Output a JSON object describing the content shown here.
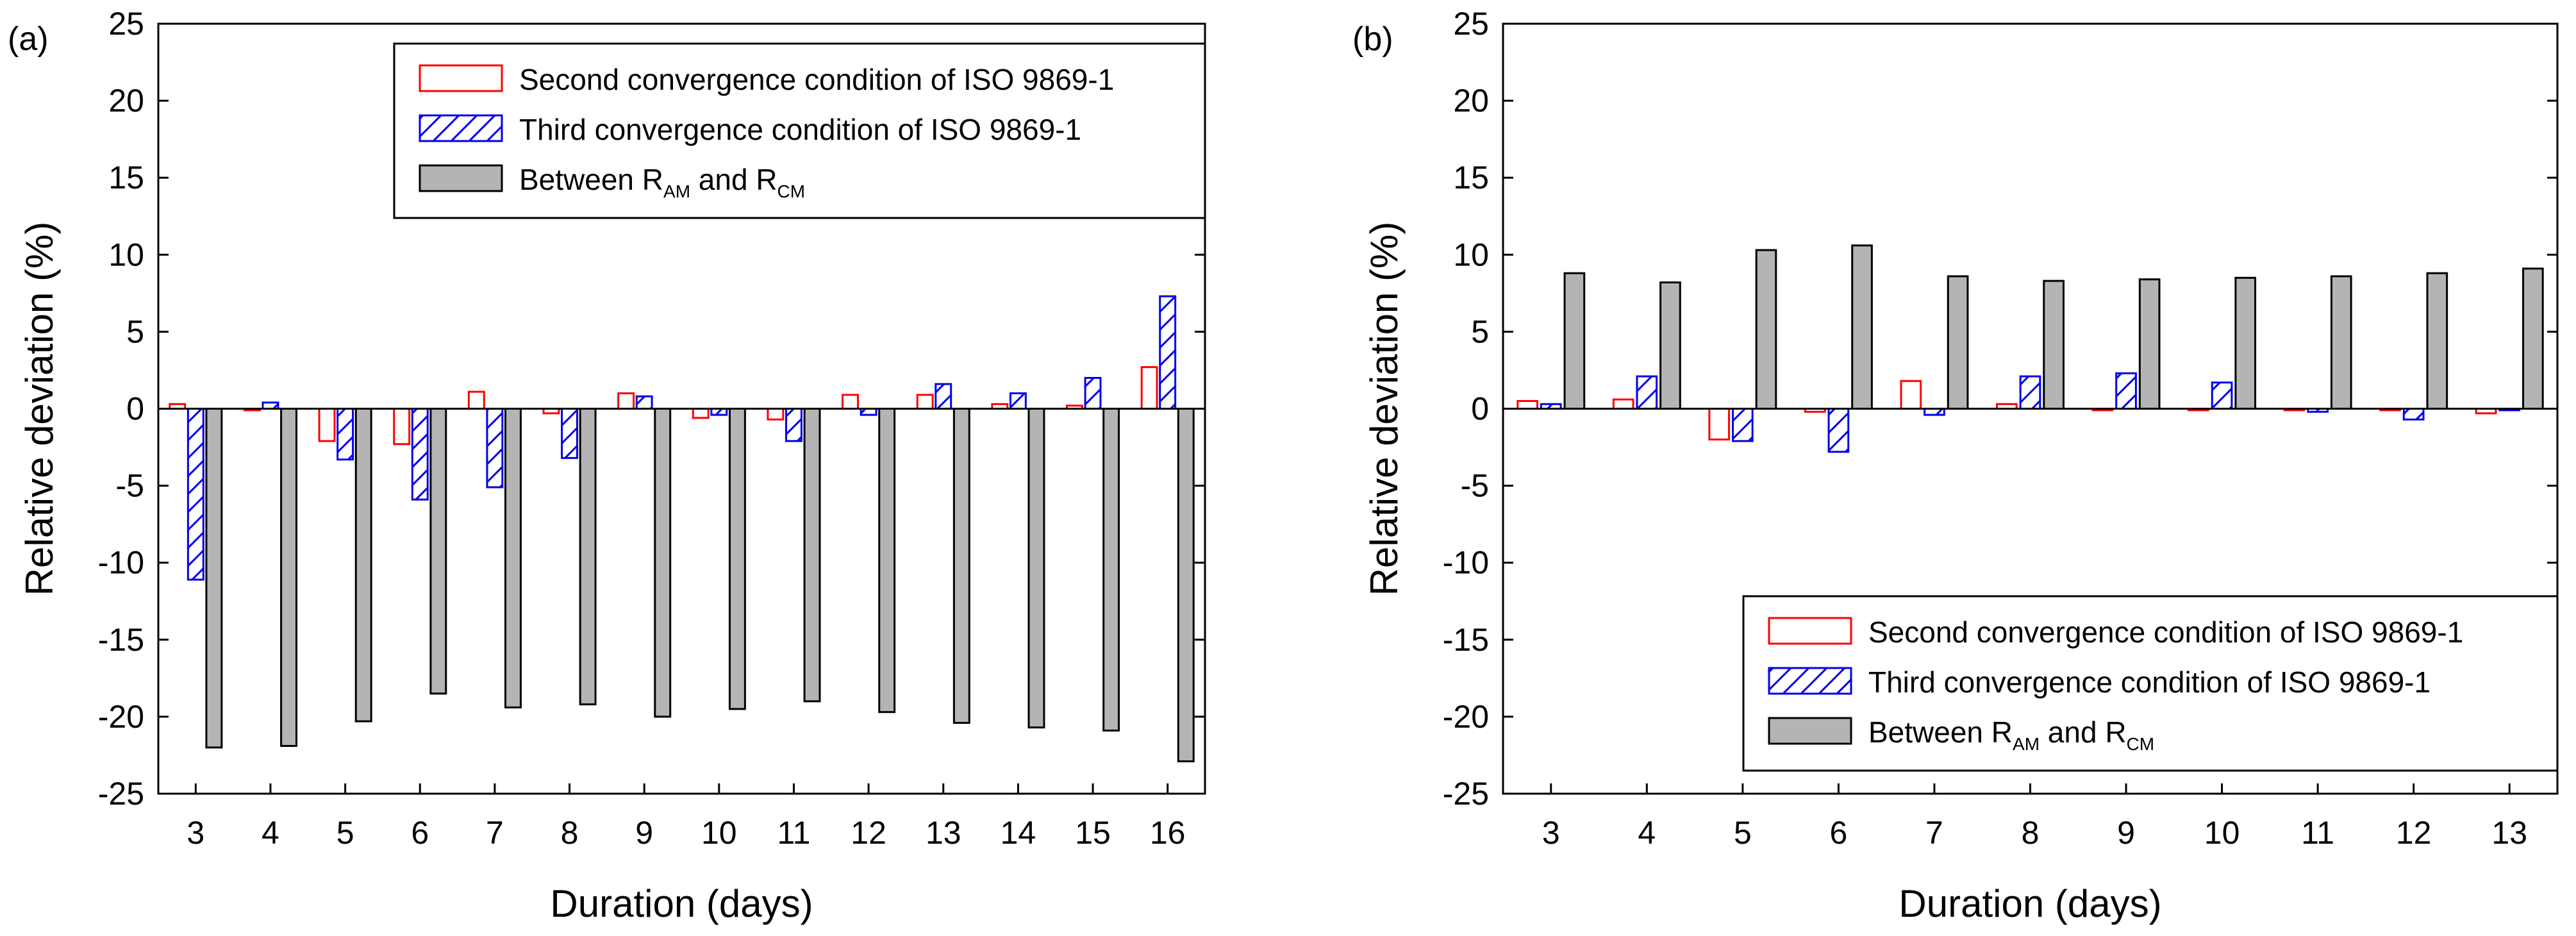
{
  "chart_data": [
    {
      "panel_label": "(a)",
      "type": "bar",
      "xlabel": "Duration (days)",
      "ylabel": "Relative deviation (%)",
      "ylim": [
        -25,
        25
      ],
      "yticks": [
        25,
        20,
        15,
        10,
        5,
        0,
        -5,
        -10,
        -15,
        -20,
        -25
      ],
      "categories": [
        "3",
        "4",
        "5",
        "6",
        "7",
        "8",
        "9",
        "10",
        "11",
        "12",
        "13",
        "14",
        "15",
        "16"
      ],
      "series": [
        {
          "name": "Second convergence condition of ISO 9869-1",
          "style": "open-red",
          "values": [
            0.3,
            -0.1,
            -2.1,
            -2.3,
            1.1,
            -0.3,
            1.0,
            -0.6,
            -0.7,
            0.9,
            0.9,
            0.3,
            0.2,
            2.7
          ]
        },
        {
          "name": "Third convergence condition of ISO 9869-1",
          "style": "hatch-blue",
          "values": [
            -11.1,
            0.4,
            -3.3,
            -5.9,
            -5.1,
            -3.2,
            0.8,
            -0.4,
            -2.1,
            -0.4,
            1.6,
            1.0,
            2.0,
            7.3
          ]
        },
        {
          "name": "Between R_AM and R_CM",
          "style": "solid-gray",
          "values": [
            -22.0,
            -21.9,
            -20.3,
            -18.5,
            -19.4,
            -19.2,
            -20.0,
            -19.5,
            -19.0,
            -19.7,
            -20.4,
            -20.7,
            -20.9,
            -22.9
          ]
        }
      ],
      "legend": {
        "placement": "top-right",
        "items": [
          {
            "text": "Second convergence condition of ISO 9869-1"
          },
          {
            "text": "Third convergence condition of ISO 9869-1"
          },
          {
            "prefix": "Between R",
            "sub1": "AM",
            "mid": " and R",
            "sub2": "CM"
          }
        ]
      }
    },
    {
      "panel_label": "(b)",
      "type": "bar",
      "xlabel": "Duration (days)",
      "ylabel": "Relative deviation (%)",
      "ylim": [
        -25,
        25
      ],
      "yticks": [
        25,
        20,
        15,
        10,
        5,
        0,
        -5,
        -10,
        -15,
        -20,
        -25
      ],
      "categories": [
        "3",
        "4",
        "5",
        "6",
        "7",
        "8",
        "9",
        "10",
        "11",
        "12",
        "13"
      ],
      "series": [
        {
          "name": "Second convergence condition of ISO 9869-1",
          "style": "open-red",
          "values": [
            0.5,
            0.6,
            -2.0,
            -0.2,
            1.8,
            0.3,
            -0.1,
            -0.1,
            -0.1,
            -0.1,
            -0.3
          ]
        },
        {
          "name": "Third convergence condition of ISO 9869-1",
          "style": "hatch-blue",
          "values": [
            0.3,
            2.1,
            -2.1,
            -2.8,
            -0.4,
            2.1,
            2.3,
            1.7,
            -0.2,
            -0.7,
            -0.1
          ]
        },
        {
          "name": "Between R_AM and R_CM",
          "style": "solid-gray",
          "values": [
            8.8,
            8.2,
            10.3,
            10.6,
            8.6,
            8.3,
            8.4,
            8.5,
            8.6,
            8.8,
            9.1
          ]
        }
      ],
      "legend": {
        "placement": "bottom-right",
        "items": [
          {
            "text": "Second convergence condition of ISO 9869-1"
          },
          {
            "text": "Third convergence condition of ISO 9869-1"
          },
          {
            "prefix": "Between R",
            "sub1": "AM",
            "mid": " and R",
            "sub2": "CM"
          }
        ]
      }
    }
  ],
  "colors": {
    "red": "#ff0000",
    "blue": "#0000ee",
    "gray": "#b4b4b4",
    "axis": "#000000"
  }
}
